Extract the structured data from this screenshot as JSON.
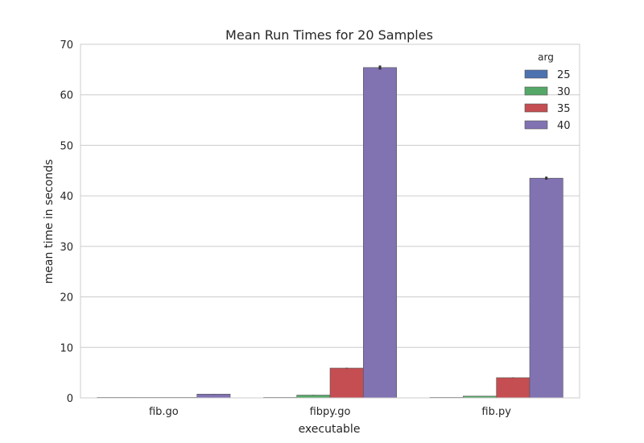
{
  "chart_data": {
    "type": "bar",
    "title": "Mean Run Times for 20 Samples",
    "xlabel": "executable",
    "ylabel": "mean time in seconds",
    "categories": [
      "fib.go",
      "fibpy.go",
      "fib.py"
    ],
    "ylim": [
      0,
      70
    ],
    "yticks": [
      "0",
      "10",
      "20",
      "30",
      "40",
      "50",
      "60",
      "70"
    ],
    "grid": true,
    "legend": {
      "title": "arg",
      "placement": "top-right"
    },
    "series": [
      {
        "name": "25",
        "color": "#4c72b0",
        "values": [
          0.005,
          0.05,
          0.03
        ],
        "error": [
          0,
          0,
          0
        ]
      },
      {
        "name": "30",
        "color": "#55a868",
        "values": [
          0.06,
          0.55,
          0.35
        ],
        "error": [
          0,
          0.02,
          0.01
        ]
      },
      {
        "name": "35",
        "color": "#c44e52",
        "values": [
          0.07,
          5.9,
          4.0
        ],
        "error": [
          0,
          0.05,
          0.04
        ]
      },
      {
        "name": "40",
        "color": "#8172b2",
        "values": [
          0.75,
          65.4,
          43.5
        ],
        "error": [
          0.02,
          0.4,
          0.3
        ]
      }
    ]
  }
}
